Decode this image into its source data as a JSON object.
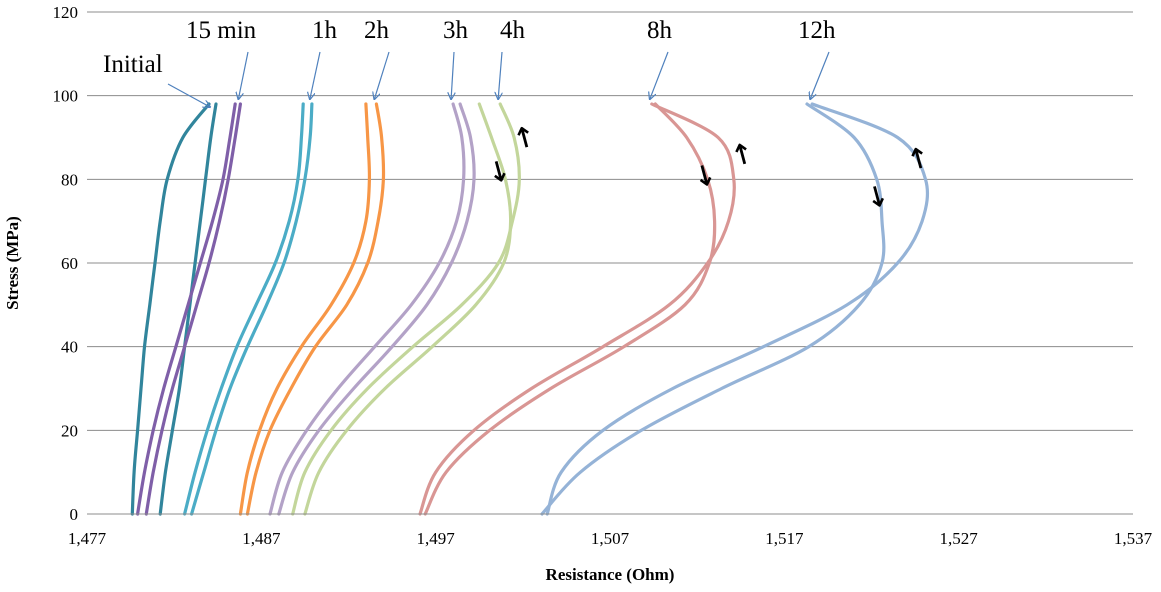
{
  "chart_data": {
    "type": "line",
    "title": "",
    "xlabel": "Resistance (Ohm)",
    "ylabel": "Stress (MPa)",
    "xlim": [
      1477,
      1537
    ],
    "ylim": [
      0,
      120
    ],
    "x_ticks": [
      "1,477",
      "1,487",
      "1,497",
      "1,507",
      "1,517",
      "1,527",
      "1,537"
    ],
    "y_ticks": [
      "0",
      "20",
      "40",
      "60",
      "80",
      "100",
      "120"
    ],
    "grid": "horizontal",
    "series": [
      {
        "name": "Initial",
        "color": "#31859C",
        "loading": [
          [
            1481.2,
            0
          ],
          [
            1481.5,
            10
          ],
          [
            1481.9,
            20
          ],
          [
            1482.3,
            30
          ],
          [
            1482.6,
            40
          ],
          [
            1482.9,
            50
          ],
          [
            1483.2,
            60
          ],
          [
            1483.5,
            70
          ],
          [
            1483.8,
            80
          ],
          [
            1484.1,
            90
          ],
          [
            1484.4,
            98
          ]
        ],
        "unloading": [
          [
            1479.6,
            0
          ],
          [
            1479.7,
            10
          ],
          [
            1479.9,
            20
          ],
          [
            1480.1,
            30
          ],
          [
            1480.3,
            40
          ],
          [
            1480.6,
            50
          ],
          [
            1480.9,
            60
          ],
          [
            1481.2,
            70
          ],
          [
            1481.6,
            80
          ],
          [
            1482.5,
            90
          ],
          [
            1484.0,
            98
          ]
        ]
      },
      {
        "name": "15 min",
        "color": "#7F5FA8",
        "loading": [
          [
            1480.4,
            0
          ],
          [
            1480.8,
            10
          ],
          [
            1481.3,
            20
          ],
          [
            1481.9,
            30
          ],
          [
            1482.6,
            40
          ],
          [
            1483.3,
            50
          ],
          [
            1484.0,
            60
          ],
          [
            1484.6,
            70
          ],
          [
            1485.1,
            80
          ],
          [
            1485.5,
            90
          ],
          [
            1485.8,
            98
          ]
        ],
        "unloading": [
          [
            1479.9,
            0
          ],
          [
            1480.3,
            10
          ],
          [
            1480.8,
            20
          ],
          [
            1481.4,
            30
          ],
          [
            1482.1,
            40
          ],
          [
            1482.8,
            50
          ],
          [
            1483.5,
            60
          ],
          [
            1484.2,
            70
          ],
          [
            1484.8,
            80
          ],
          [
            1485.2,
            90
          ],
          [
            1485.5,
            98
          ]
        ]
      },
      {
        "name": "1h",
        "color": "#4BACC6",
        "loading": [
          [
            1483.0,
            0
          ],
          [
            1483.7,
            10
          ],
          [
            1484.4,
            20
          ],
          [
            1485.2,
            30
          ],
          [
            1486.2,
            40
          ],
          [
            1487.3,
            50
          ],
          [
            1488.3,
            60
          ],
          [
            1489.0,
            70
          ],
          [
            1489.5,
            80
          ],
          [
            1489.8,
            90
          ],
          [
            1489.9,
            98
          ]
        ],
        "unloading": [
          [
            1482.6,
            0
          ],
          [
            1483.2,
            10
          ],
          [
            1483.9,
            20
          ],
          [
            1484.7,
            30
          ],
          [
            1485.6,
            40
          ],
          [
            1486.7,
            50
          ],
          [
            1487.8,
            60
          ],
          [
            1488.6,
            70
          ],
          [
            1489.1,
            80
          ],
          [
            1489.3,
            90
          ],
          [
            1489.4,
            98
          ]
        ]
      },
      {
        "name": "2h",
        "color": "#F79646",
        "loading": [
          [
            1486.2,
            0
          ],
          [
            1486.7,
            10
          ],
          [
            1487.5,
            20
          ],
          [
            1488.7,
            30
          ],
          [
            1490.1,
            40
          ],
          [
            1491.9,
            50
          ],
          [
            1493.1,
            60
          ],
          [
            1493.7,
            70
          ],
          [
            1494.0,
            80
          ],
          [
            1493.9,
            90
          ],
          [
            1493.6,
            98
          ]
        ],
        "unloading": [
          [
            1485.8,
            0
          ],
          [
            1486.2,
            10
          ],
          [
            1486.9,
            20
          ],
          [
            1487.9,
            30
          ],
          [
            1489.3,
            40
          ],
          [
            1491.0,
            50
          ],
          [
            1492.3,
            60
          ],
          [
            1493.0,
            70
          ],
          [
            1493.2,
            80
          ],
          [
            1493.1,
            90
          ],
          [
            1493.0,
            98
          ]
        ]
      },
      {
        "name": "3h",
        "color": "#B3A2C7",
        "loading": [
          [
            1487.5,
            0
          ],
          [
            1488.2,
            10
          ],
          [
            1489.6,
            20
          ],
          [
            1491.4,
            30
          ],
          [
            1493.5,
            40
          ],
          [
            1495.6,
            50
          ],
          [
            1497.2,
            60
          ],
          [
            1498.2,
            70
          ],
          [
            1498.6,
            80
          ],
          [
            1498.5,
            90
          ],
          [
            1498.0,
            98
          ]
        ],
        "unloading": [
          [
            1488.0,
            0
          ],
          [
            1488.8,
            10
          ],
          [
            1490.3,
            20
          ],
          [
            1492.3,
            30
          ],
          [
            1494.5,
            40
          ],
          [
            1496.5,
            50
          ],
          [
            1497.9,
            60
          ],
          [
            1498.8,
            70
          ],
          [
            1499.2,
            80
          ],
          [
            1499.0,
            90
          ],
          [
            1498.4,
            98
          ]
        ]
      },
      {
        "name": "4h",
        "color": "#C3D69B",
        "loading": [
          [
            1488.8,
            0
          ],
          [
            1489.5,
            10
          ],
          [
            1491.0,
            20
          ],
          [
            1493.1,
            30
          ],
          [
            1495.7,
            40
          ],
          [
            1498.5,
            50
          ],
          [
            1500.6,
            60
          ],
          [
            1501.4,
            70
          ],
          [
            1501.8,
            80
          ],
          [
            1501.5,
            90
          ],
          [
            1500.7,
            98
          ]
        ],
        "unloading": [
          [
            1489.5,
            0
          ],
          [
            1490.3,
            10
          ],
          [
            1491.9,
            20
          ],
          [
            1494.1,
            30
          ],
          [
            1496.8,
            40
          ],
          [
            1499.3,
            50
          ],
          [
            1500.9,
            60
          ],
          [
            1501.3,
            70
          ],
          [
            1501.0,
            80
          ],
          [
            1500.2,
            90
          ],
          [
            1499.5,
            98
          ]
        ]
      },
      {
        "name": "8h",
        "color": "#D99694",
        "loading": [
          [
            1496.1,
            0
          ],
          [
            1497.0,
            10
          ],
          [
            1499.2,
            20
          ],
          [
            1502.5,
            30
          ],
          [
            1506.6,
            40
          ],
          [
            1510.4,
            50
          ],
          [
            1512.6,
            60
          ],
          [
            1513.8,
            70
          ],
          [
            1514.1,
            80
          ],
          [
            1513.2,
            90
          ],
          [
            1509.4,
            98
          ]
        ],
        "unloading": [
          [
            1496.4,
            0
          ],
          [
            1497.6,
            10
          ],
          [
            1500.1,
            20
          ],
          [
            1503.6,
            30
          ],
          [
            1507.8,
            40
          ],
          [
            1511.3,
            50
          ],
          [
            1512.7,
            60
          ],
          [
            1513.0,
            70
          ],
          [
            1512.6,
            80
          ],
          [
            1511.4,
            90
          ],
          [
            1509.6,
            98
          ]
        ]
      },
      {
        "name": "12h",
        "color": "#95B3D7",
        "loading": [
          [
            1503.4,
            0
          ],
          [
            1504.2,
            10
          ],
          [
            1506.6,
            20
          ],
          [
            1510.6,
            30
          ],
          [
            1515.8,
            40
          ],
          [
            1520.6,
            50
          ],
          [
            1523.5,
            60
          ],
          [
            1524.9,
            70
          ],
          [
            1525.1,
            80
          ],
          [
            1523.5,
            90
          ],
          [
            1518.6,
            98
          ]
        ],
        "unloading": [
          [
            1503.1,
            0
          ],
          [
            1505.3,
            10
          ],
          [
            1508.8,
            20
          ],
          [
            1513.4,
            30
          ],
          [
            1518.4,
            40
          ],
          [
            1521.3,
            50
          ],
          [
            1522.6,
            60
          ],
          [
            1522.6,
            70
          ],
          [
            1522.3,
            80
          ],
          [
            1521.0,
            90
          ],
          [
            1518.3,
            98
          ]
        ]
      }
    ],
    "annotations": [
      {
        "text": "Initial",
        "pointer": "arrow"
      },
      {
        "text": "15 min",
        "pointer": "arrow"
      },
      {
        "text": "1h",
        "pointer": "arrow"
      },
      {
        "text": "2h",
        "pointer": "arrow"
      },
      {
        "text": "3h",
        "pointer": "arrow"
      },
      {
        "text": "4h",
        "pointer": "arrow"
      },
      {
        "text": "8h",
        "pointer": "arrow"
      },
      {
        "text": "12h",
        "pointer": "arrow"
      }
    ],
    "direction_arrows": [
      {
        "series": "4h",
        "direction": "down",
        "x": 1500.7,
        "y": 80
      },
      {
        "series": "4h",
        "direction": "up",
        "x": 1502.0,
        "y": 92
      },
      {
        "series": "8h",
        "direction": "down",
        "x": 1512.5,
        "y": 79
      },
      {
        "series": "8h",
        "direction": "up",
        "x": 1514.5,
        "y": 88
      },
      {
        "series": "12h",
        "direction": "down",
        "x": 1522.4,
        "y": 74
      },
      {
        "series": "12h",
        "direction": "up",
        "x": 1524.6,
        "y": 87
      }
    ]
  }
}
